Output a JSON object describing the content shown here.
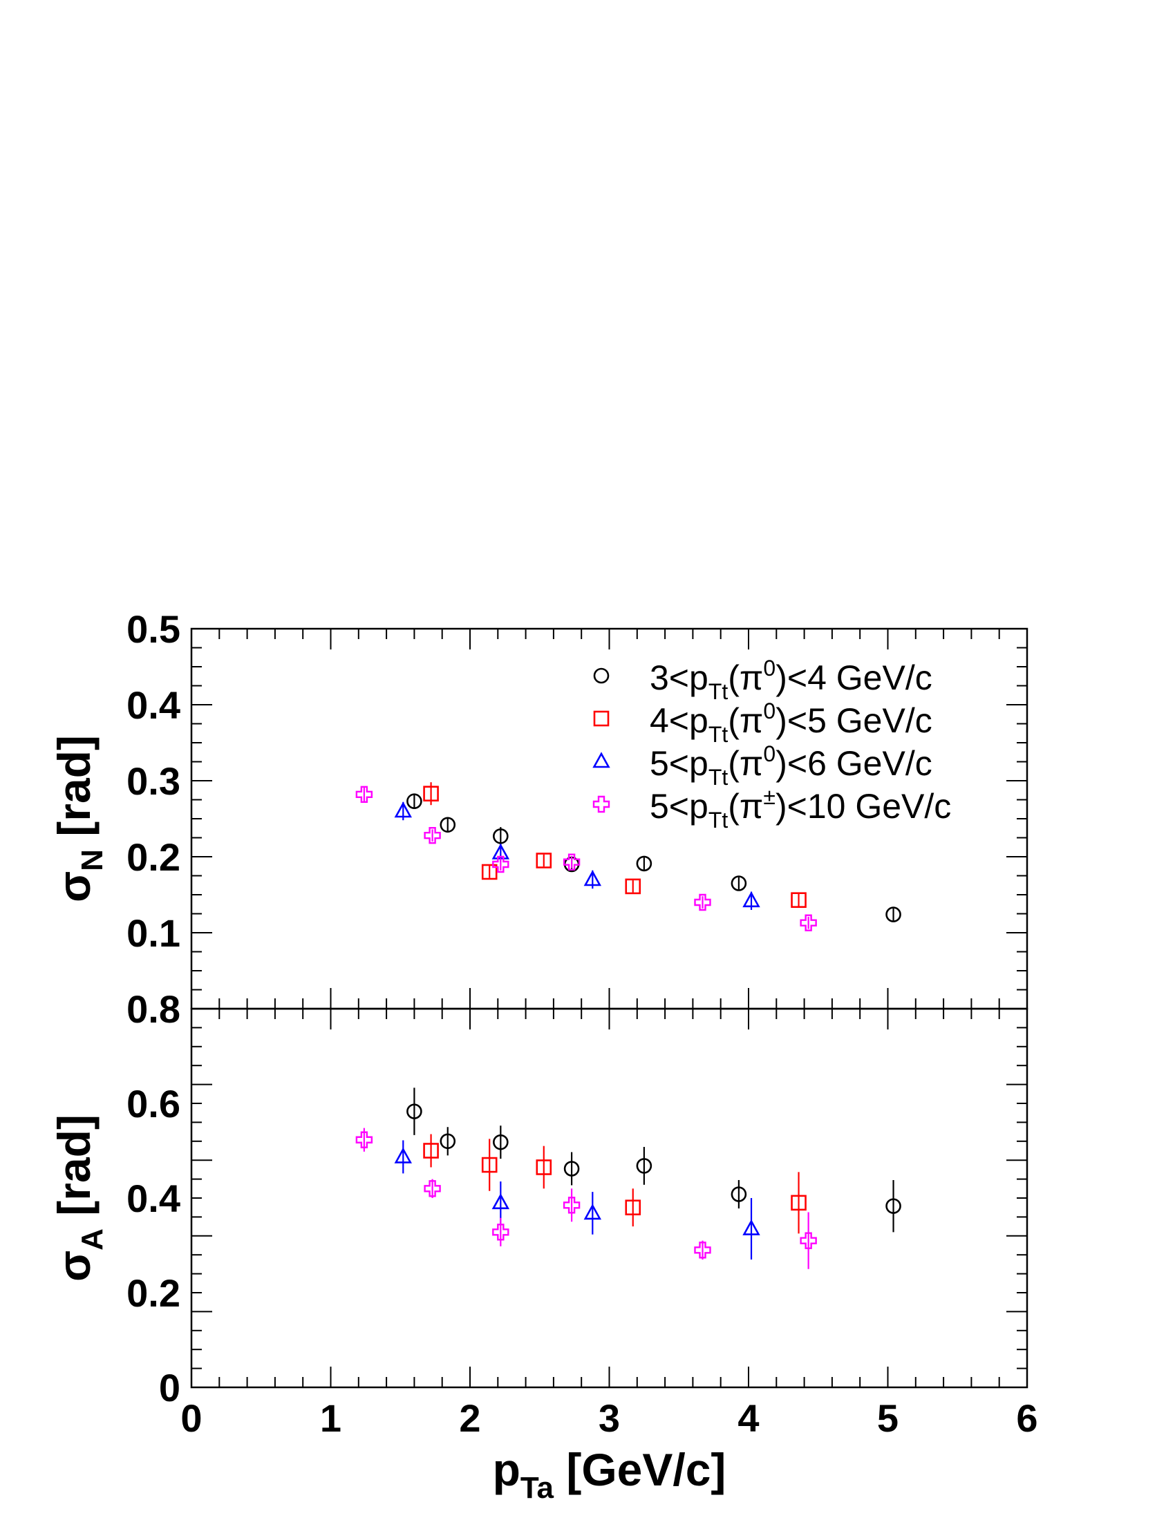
{
  "chart_data": [
    {
      "type": "scatter",
      "panel": "top",
      "ylabel": {
        "symbol": "σ",
        "sub": "N",
        "unit": "[rad]"
      },
      "xlim": [
        0,
        6
      ],
      "ylim": [
        0,
        0.5
      ],
      "y_tick_labels": [
        {
          "v": 0.1,
          "t": "0.1"
        },
        {
          "v": 0.2,
          "t": "0.2"
        },
        {
          "v": 0.3,
          "t": "0.3"
        },
        {
          "v": 0.4,
          "t": "0.4"
        },
        {
          "v": 0.5,
          "t": "0.5"
        }
      ],
      "legend_position": "top-right",
      "series": [
        {
          "key": "s1",
          "marker": "circle",
          "color": "#000000",
          "points": [
            [
              1.6,
              0.273,
              0.01
            ],
            [
              1.84,
              0.242,
              0.008
            ],
            [
              2.22,
              0.227,
              0.012
            ],
            [
              2.73,
              0.19,
              0.008
            ],
            [
              3.25,
              0.191,
              0.008
            ],
            [
              3.93,
              0.165,
              0.008
            ],
            [
              5.04,
              0.124,
              0.008
            ]
          ]
        },
        {
          "key": "s2",
          "marker": "square",
          "color": "#ff0000",
          "points": [
            [
              1.72,
              0.283,
              0.015
            ],
            [
              2.14,
              0.18,
              0.008
            ],
            [
              2.53,
              0.195,
              0.008
            ],
            [
              3.17,
              0.161,
              0.008
            ],
            [
              4.36,
              0.143,
              0.01
            ]
          ]
        },
        {
          "key": "s3",
          "marker": "triangle",
          "color": "#0000ff",
          "points": [
            [
              1.52,
              0.26,
              0.012
            ],
            [
              2.22,
              0.205,
              0.012
            ],
            [
              2.88,
              0.17,
              0.012
            ],
            [
              4.02,
              0.142,
              0.012
            ]
          ]
        },
        {
          "key": "s4",
          "marker": "cross",
          "color": "#ff00ff",
          "points": [
            [
              1.24,
              0.282,
              0.01
            ],
            [
              1.73,
              0.228,
              0.008
            ],
            [
              2.22,
              0.19,
              0.008
            ],
            [
              2.73,
              0.193,
              0.008
            ],
            [
              3.67,
              0.14,
              0.008
            ],
            [
              4.43,
              0.113,
              0.008
            ]
          ]
        }
      ]
    },
    {
      "type": "scatter",
      "panel": "bottom",
      "xlabel": {
        "symbol": "p",
        "sub": "Ta",
        "unit": "[GeV/c]"
      },
      "ylabel": {
        "symbol": "σ",
        "sub": "A",
        "unit": "[rad]"
      },
      "xlim": [
        0,
        6
      ],
      "ylim": [
        0,
        0.8
      ],
      "x_tick_labels": [
        "0",
        "1",
        "2",
        "3",
        "4",
        "5",
        "6"
      ],
      "y_tick_labels": [
        {
          "v": 0,
          "t": "0"
        },
        {
          "v": 0.2,
          "t": "0.2"
        },
        {
          "v": 0.4,
          "t": "0.4"
        },
        {
          "v": 0.6,
          "t": "0.6"
        },
        {
          "v": 0.8,
          "t": "0.8"
        }
      ],
      "series": [
        {
          "key": "s1",
          "marker": "circle",
          "color": "#000000",
          "points": [
            [
              1.6,
              0.583,
              0.05
            ],
            [
              1.84,
              0.52,
              0.03
            ],
            [
              2.22,
              0.518,
              0.035
            ],
            [
              2.73,
              0.462,
              0.035
            ],
            [
              3.25,
              0.468,
              0.04
            ],
            [
              3.93,
              0.408,
              0.03
            ],
            [
              5.04,
              0.383,
              0.055
            ]
          ]
        },
        {
          "key": "s2",
          "marker": "square",
          "color": "#ff0000",
          "points": [
            [
              1.72,
              0.5,
              0.035
            ],
            [
              2.14,
              0.47,
              0.055
            ],
            [
              2.53,
              0.465,
              0.045
            ],
            [
              3.17,
              0.38,
              0.04
            ],
            [
              4.36,
              0.39,
              0.065
            ]
          ]
        },
        {
          "key": "s3",
          "marker": "triangle",
          "color": "#0000ff",
          "points": [
            [
              1.52,
              0.487,
              0.035
            ],
            [
              2.22,
              0.39,
              0.045
            ],
            [
              2.88,
              0.368,
              0.045
            ],
            [
              4.02,
              0.335,
              0.065
            ]
          ]
        },
        {
          "key": "s4",
          "marker": "cross",
          "color": "#ff00ff",
          "points": [
            [
              1.24,
              0.523,
              0.025
            ],
            [
              1.73,
              0.42,
              0.02
            ],
            [
              2.22,
              0.328,
              0.03
            ],
            [
              2.73,
              0.385,
              0.035
            ],
            [
              3.67,
              0.29,
              0.02
            ],
            [
              4.43,
              0.31,
              0.06
            ]
          ]
        }
      ]
    }
  ],
  "legend": [
    {
      "key": "s1",
      "marker": "circle",
      "color": "#000000",
      "lo": "3<p",
      "sub": "Tt",
      "mid": "(π",
      "sup": "0",
      "hi": ")<4 GeV/c"
    },
    {
      "key": "s2",
      "marker": "square",
      "color": "#ff0000",
      "lo": "4<p",
      "sub": "Tt",
      "mid": "(π",
      "sup": "0",
      "hi": ")<5 GeV/c"
    },
    {
      "key": "s3",
      "marker": "triangle",
      "color": "#0000ff",
      "lo": "5<p",
      "sub": "Tt",
      "mid": "(π",
      "sup": "0",
      "hi": ")<6 GeV/c"
    },
    {
      "key": "s4",
      "marker": "cross",
      "color": "#ff00ff",
      "lo": "5<p",
      "sub": "Tt",
      "mid": "(π",
      "sup": "±",
      "hi": ")<10 GeV/c"
    }
  ]
}
